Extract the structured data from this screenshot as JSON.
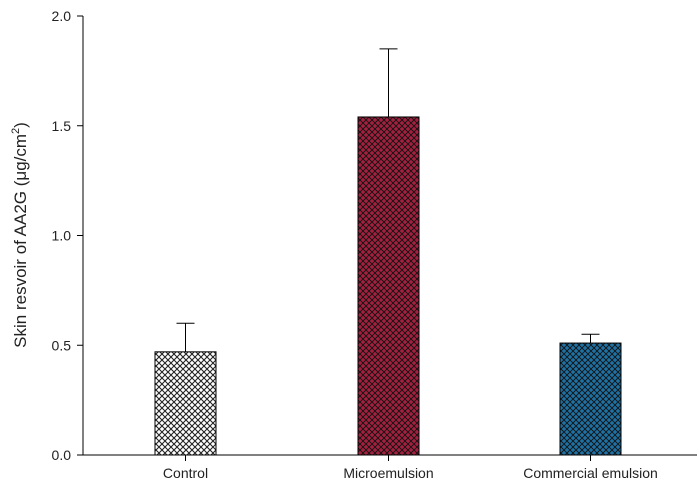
{
  "chart_data": {
    "type": "bar",
    "title": "",
    "xlabel": "",
    "ylabel": "Skin resvoir of AA2G (μg/cm",
    "ylabel_superscript": "2",
    "ylabel_suffix": ")",
    "categories": [
      "Control",
      "Microemulsion",
      "Commercial emulsion"
    ],
    "values": [
      0.47,
      1.54,
      0.51
    ],
    "error_upper": [
      0.6,
      1.85,
      0.55
    ],
    "ylim": [
      0,
      2.0
    ],
    "yticks": [
      "0.0",
      "0.5",
      "1.0",
      "1.5",
      "2.0"
    ],
    "grid": false,
    "bar_fill": "crosshatch",
    "colors": [
      "#ffffff",
      "#a3203f",
      "#1f70a3"
    ]
  }
}
